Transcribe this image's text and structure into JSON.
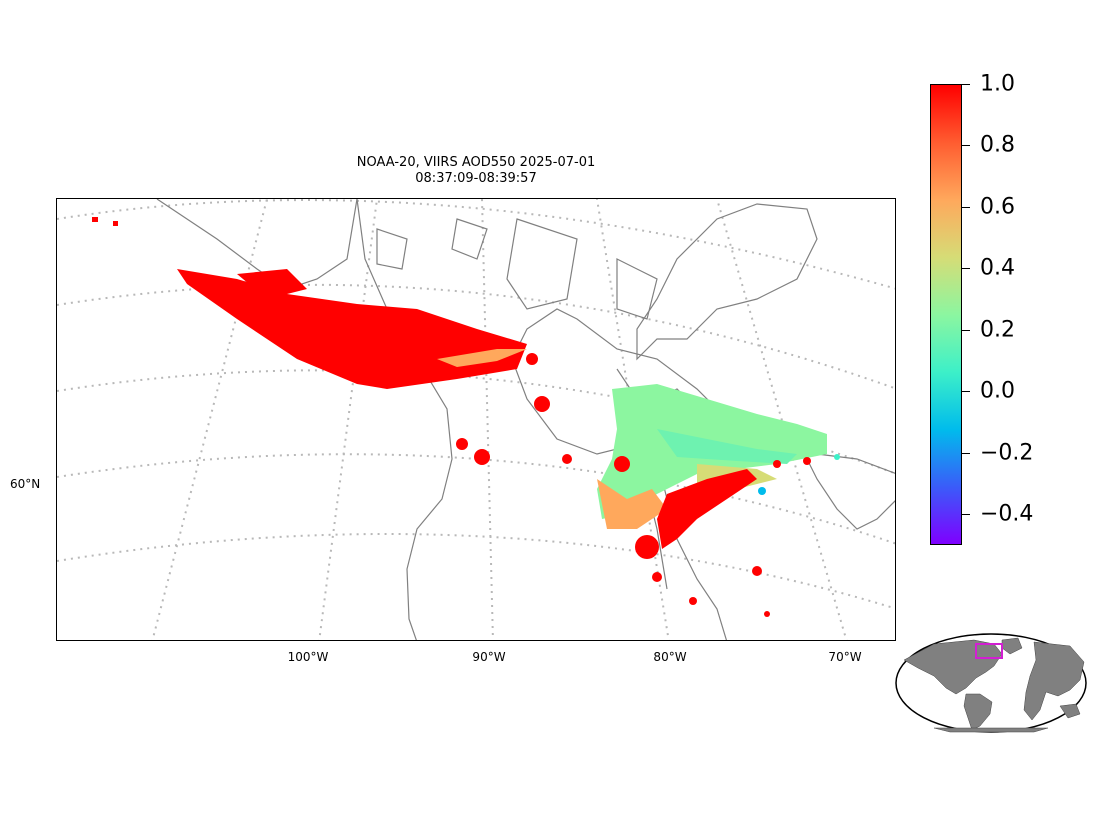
{
  "title": {
    "line1": "NOAA-20, VIIRS AOD550 2025-07-01",
    "line2": "08:37:09-08:39:57"
  },
  "lon_labels": [
    "100°W",
    "90°W",
    "80°W",
    "70°W"
  ],
  "lat_labels": [
    "60°N"
  ],
  "colorbar": {
    "colormap": "rainbow",
    "vmin": -0.5,
    "vmax": 1.0,
    "ticks": [
      "1.0",
      "0.8",
      "0.6",
      "0.4",
      "0.2",
      "0.0",
      "−0.2",
      "−0.4"
    ],
    "colors": [
      "#7f00ff",
      "#3a5cf9",
      "#00bcec",
      "#3df0c8",
      "#8cf6a0",
      "#d6dc76",
      "#ffa85c",
      "#ff5c30",
      "#ff0000"
    ]
  },
  "colors": {
    "coastline": "#808080",
    "graticule": "#b8b8b8",
    "land_inset": "#808080",
    "inset_box": "#d21fd2"
  }
}
